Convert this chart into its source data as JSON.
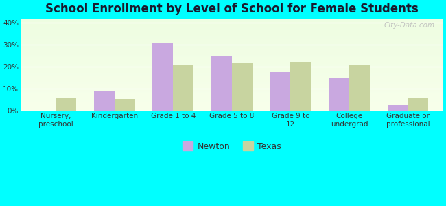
{
  "title": "School Enrollment by Level of School for Female Students",
  "categories": [
    "Nursery,\npreschool",
    "Kindergarten",
    "Grade 1 to 4",
    "Grade 5 to 8",
    "Grade 9 to\n12",
    "College\nundergrad",
    "Graduate or\nprofessional"
  ],
  "newton_values": [
    0,
    9,
    31,
    25,
    17.5,
    15,
    2.5
  ],
  "texas_values": [
    6,
    5.5,
    21,
    21.5,
    22,
    21,
    6
  ],
  "newton_color": "#c9a8e0",
  "texas_color": "#c8d4a0",
  "background_color": "#00ffff",
  "ylabel_ticks": [
    "0%",
    "10%",
    "20%",
    "30%",
    "40%"
  ],
  "ytick_values": [
    0,
    10,
    20,
    30,
    40
  ],
  "ylim": [
    0,
    42
  ],
  "bar_width": 0.35,
  "title_fontsize": 12,
  "tick_fontsize": 7.5,
  "legend_fontsize": 9,
  "watermark_text": "City-Data.com"
}
